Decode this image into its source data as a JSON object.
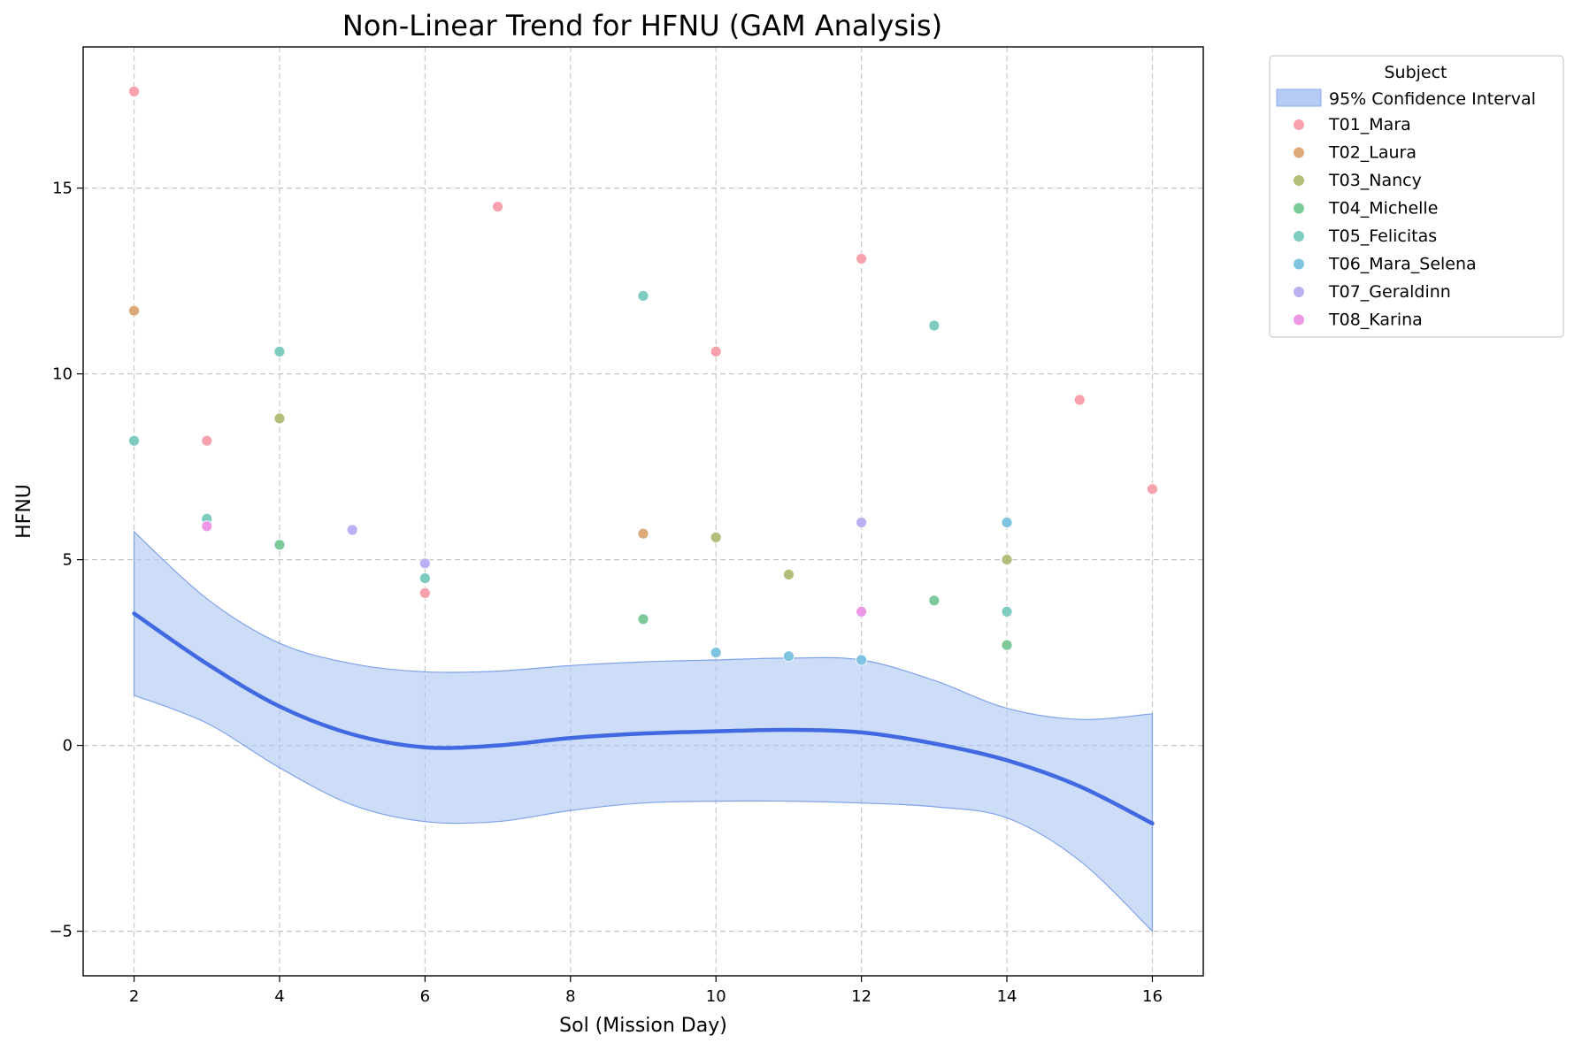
{
  "chart_data": {
    "type": "scatter",
    "title": "Non-Linear Trend for HFNU (GAM Analysis)",
    "xlabel": "Sol (Mission Day)",
    "ylabel": "HFNU",
    "xlim": [
      1.3,
      16.7
    ],
    "ylim": [
      -6.2,
      18.8
    ],
    "xticks": [
      2,
      4,
      6,
      8,
      10,
      12,
      14,
      16
    ],
    "yticks": [
      -5,
      0,
      5,
      10,
      15
    ],
    "grid": true,
    "legend": {
      "title": "Subject",
      "placement": "outside-top-right",
      "ci_label": "95% Confidence Interval"
    },
    "colors": {
      "trend": "#4169e1",
      "ci_fill": "#aec6f2",
      "ci_edge": "#7fa3ea"
    },
    "series": [
      {
        "name": "T01_Mara",
        "color": "#f7a1ad",
        "points": [
          [
            2,
            17.6
          ],
          [
            3,
            8.2
          ],
          [
            6,
            4.1
          ],
          [
            7,
            14.5
          ],
          [
            10,
            10.6
          ],
          [
            12,
            13.1
          ],
          [
            15,
            9.3
          ],
          [
            16,
            6.9
          ]
        ]
      },
      {
        "name": "T02_Laura",
        "color": "#dba97a",
        "points": [
          [
            2,
            11.7
          ],
          [
            9,
            5.7
          ]
        ]
      },
      {
        "name": "T03_Nancy",
        "color": "#b5bd7a",
        "points": [
          [
            4,
            8.8
          ],
          [
            10,
            5.6
          ],
          [
            11,
            4.6
          ],
          [
            14,
            5.0
          ]
        ]
      },
      {
        "name": "T04_Michelle",
        "color": "#7cca9a",
        "points": [
          [
            4,
            5.4
          ],
          [
            9,
            3.4
          ],
          [
            13,
            3.9
          ],
          [
            14,
            2.7
          ]
        ]
      },
      {
        "name": "T05_Felicitas",
        "color": "#7ecbc0",
        "points": [
          [
            2,
            8.2
          ],
          [
            3,
            6.1
          ],
          [
            4,
            10.6
          ],
          [
            6,
            4.5
          ],
          [
            9,
            12.1
          ],
          [
            13,
            11.3
          ],
          [
            14,
            3.6
          ]
        ]
      },
      {
        "name": "T06_Mara_Selena",
        "color": "#7ec3e0",
        "points": [
          [
            10,
            2.5
          ],
          [
            11,
            2.4
          ],
          [
            12,
            2.3
          ],
          [
            14,
            6.0
          ]
        ]
      },
      {
        "name": "T07_Geraldinn",
        "color": "#b9b1f1",
        "points": [
          [
            5,
            5.8
          ],
          [
            6,
            4.9
          ],
          [
            12,
            6.0
          ]
        ]
      },
      {
        "name": "T08_Karina",
        "color": "#ec98e6",
        "points": [
          [
            3,
            5.9
          ],
          [
            12,
            3.6
          ]
        ]
      }
    ],
    "trend": {
      "x": [
        2,
        3,
        4,
        5,
        6,
        7,
        8,
        9,
        10,
        11,
        12,
        13,
        14,
        15,
        16
      ],
      "y": [
        3.55,
        2.2,
        1.05,
        0.3,
        -0.05,
        0.0,
        0.2,
        0.32,
        0.38,
        0.42,
        0.35,
        0.05,
        -0.4,
        -1.1,
        -2.1
      ],
      "lower": [
        1.35,
        0.6,
        -0.6,
        -1.6,
        -2.05,
        -2.05,
        -1.75,
        -1.55,
        -1.5,
        -1.5,
        -1.55,
        -1.65,
        -1.95,
        -3.1,
        -5.0
      ],
      "upper": [
        5.75,
        3.95,
        2.75,
        2.2,
        1.98,
        2.0,
        2.15,
        2.25,
        2.3,
        2.35,
        2.3,
        1.75,
        1.0,
        0.7,
        0.85
      ]
    }
  }
}
